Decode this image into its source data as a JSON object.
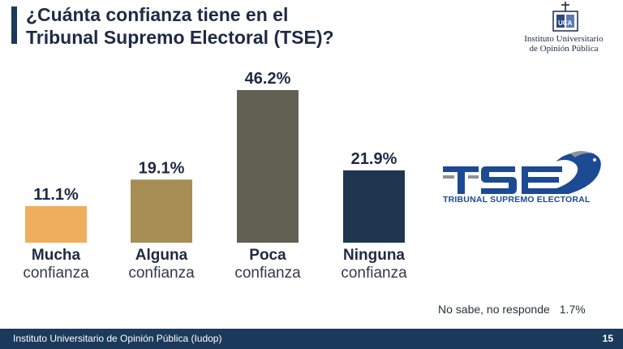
{
  "header": {
    "title_line1": "¿Cuánta confianza tiene en el",
    "title_line2": "Tribunal Supremo Electoral (TSE)?",
    "accent_color": "#1b3a5c"
  },
  "institution_logo": {
    "icon": "iudop-logo-icon",
    "name_line1": "Instituto Universitario",
    "name_line2": "de Opinión Pública"
  },
  "chart_data": {
    "type": "bar",
    "categories": [
      "Mucha confianza",
      "Alguna confianza",
      "Poca confianza",
      "Ninguna confianza"
    ],
    "category_lines": [
      [
        "Mucha",
        "confianza"
      ],
      [
        "Alguna",
        "confianza"
      ],
      [
        "Poca",
        "confianza"
      ],
      [
        "Ninguna",
        "confianza"
      ]
    ],
    "values": [
      11.1,
      19.1,
      46.2,
      21.9
    ],
    "value_labels": [
      "11.1%",
      "19.1%",
      "46.2%",
      "21.9%"
    ],
    "colors": [
      "#efae5d",
      "#a88e55",
      "#626053",
      "#1f3650"
    ],
    "ylim": [
      0,
      50
    ],
    "grid": false,
    "legend": "none"
  },
  "tse_logo": {
    "icon": "tse-logo-icon",
    "wordmark": "TSE",
    "caption": "TRIBUNAL SUPREMO ELECTORAL"
  },
  "note": {
    "label": "No sabe, no responde",
    "value": "1.7%"
  },
  "footer": {
    "text": "Instituto Universitario de Opinión Pública (Iudop)",
    "page": "15"
  }
}
